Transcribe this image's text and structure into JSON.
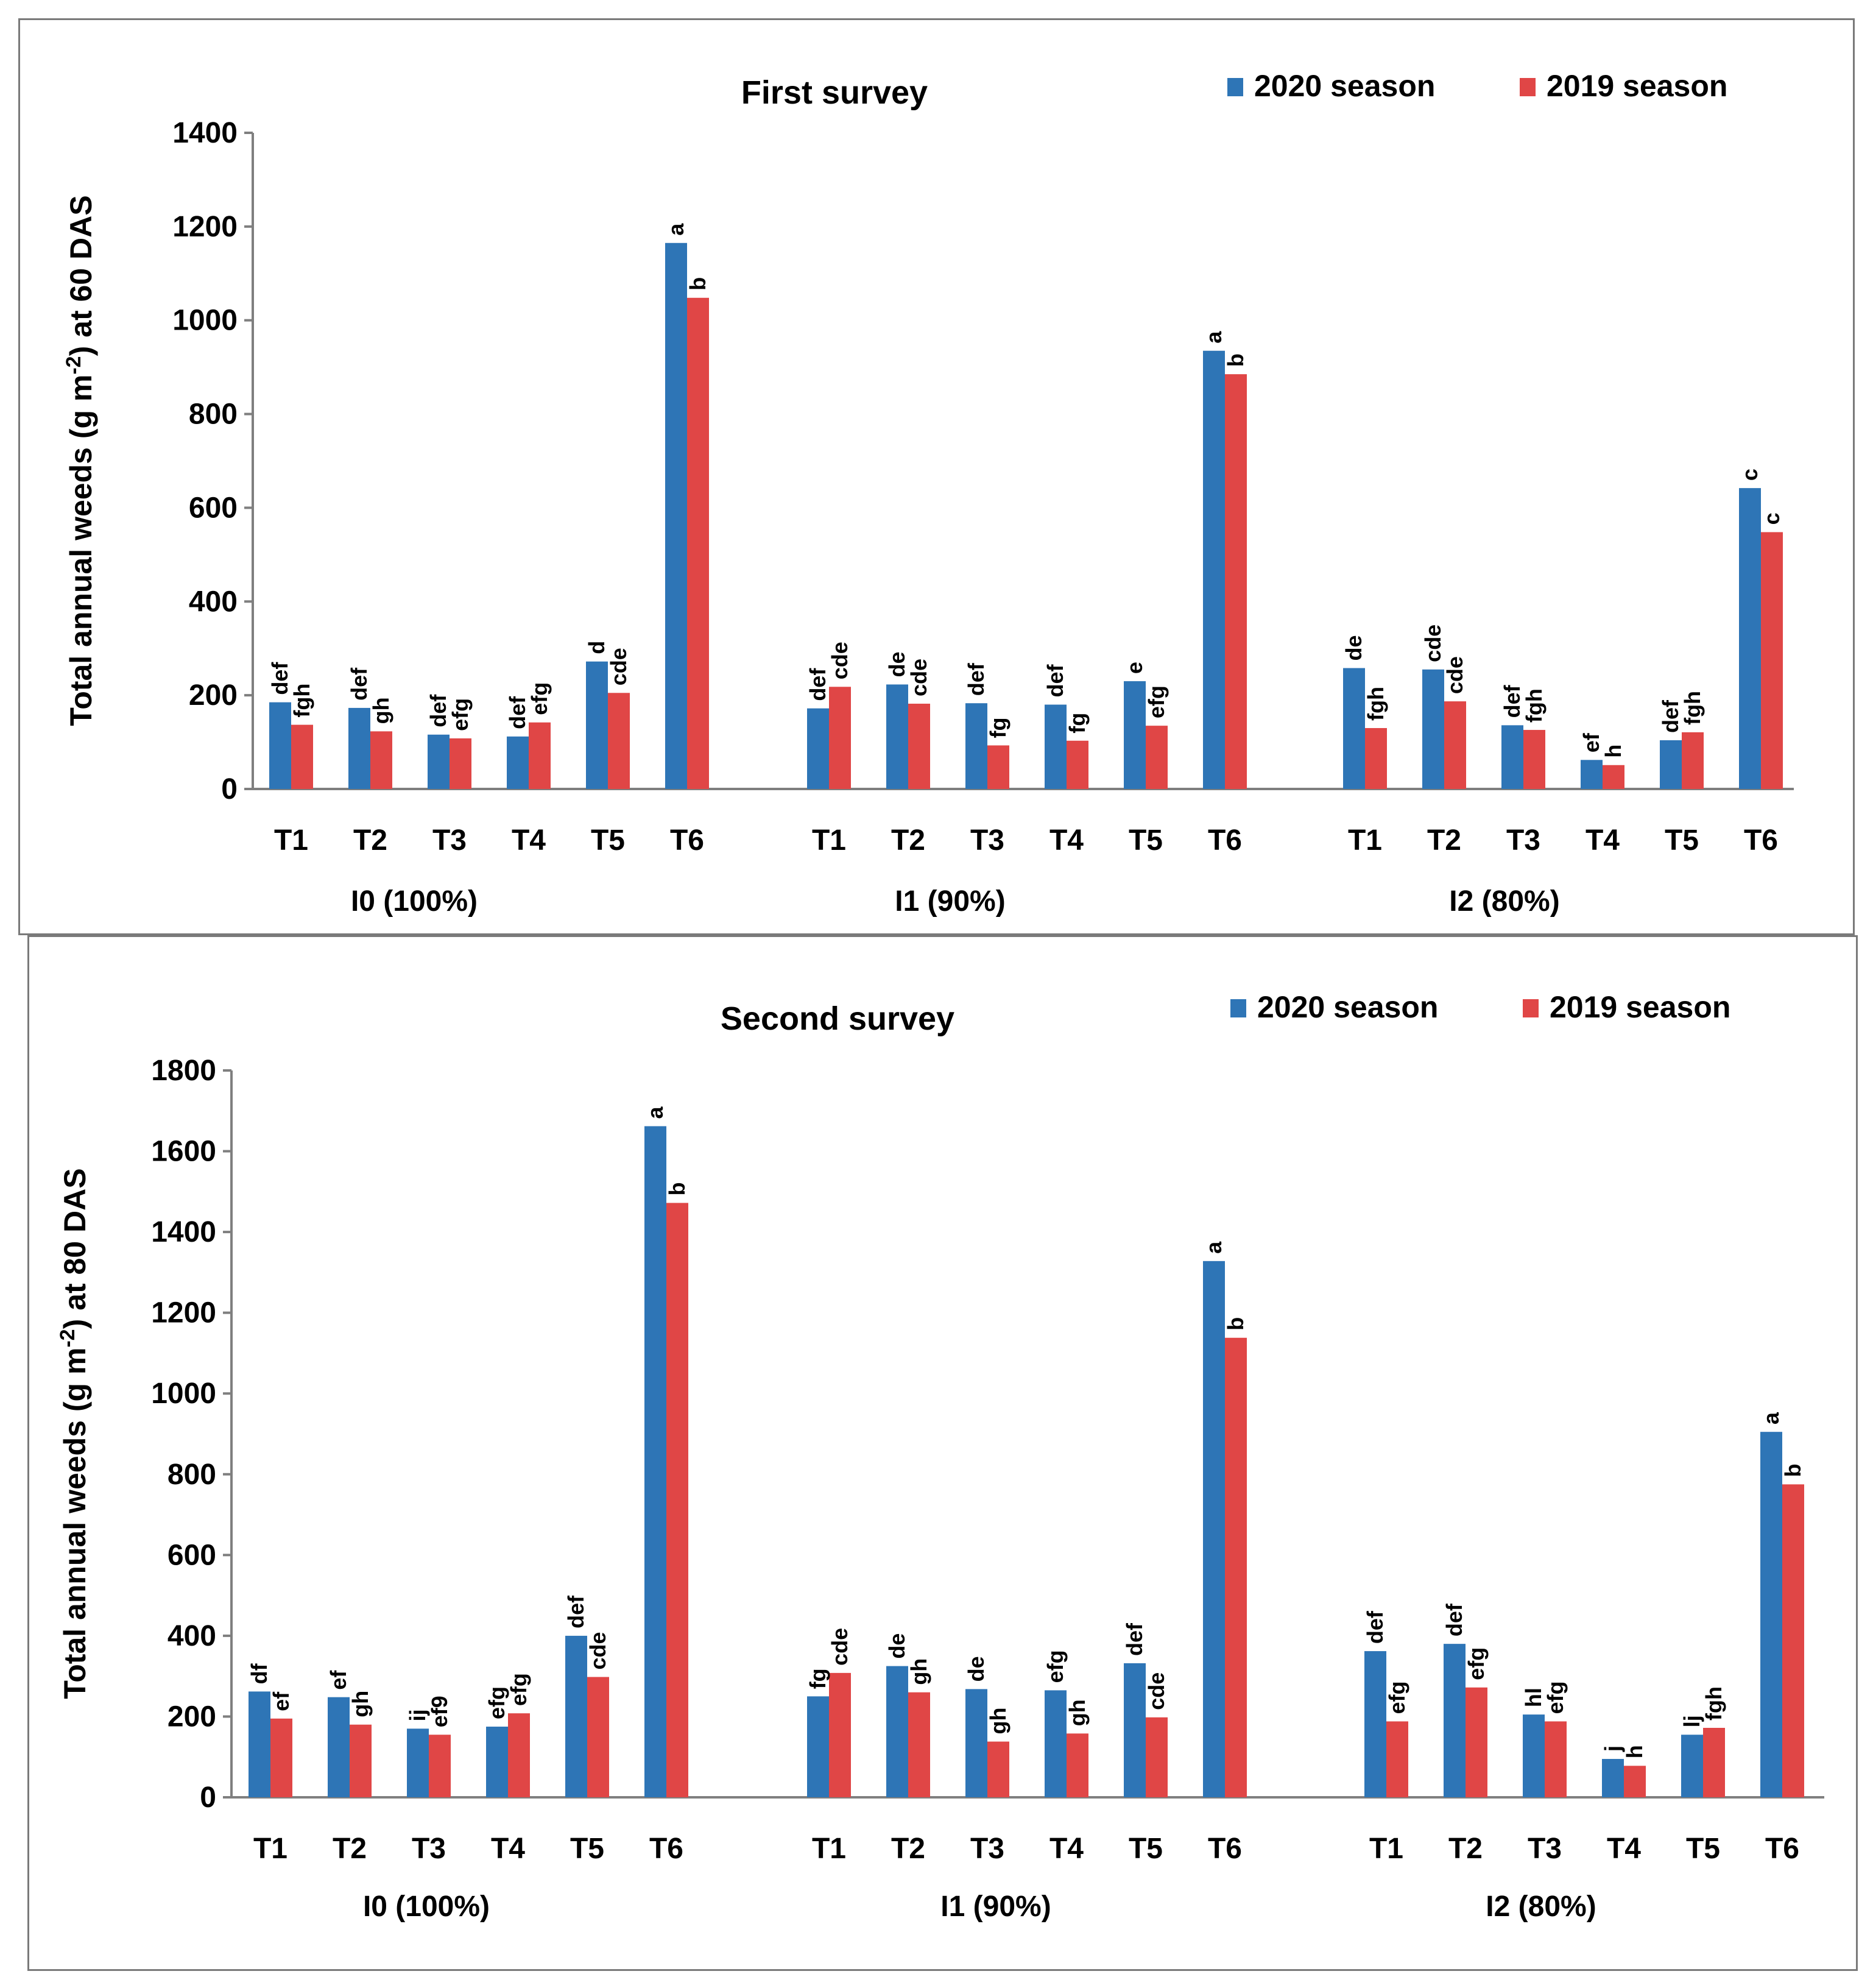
{
  "colors": {
    "s2020": "#2e75b6",
    "s2019": "#e04646",
    "axis": "#7f7f7f"
  },
  "chart_data": [
    {
      "type": "bar",
      "title": "First survey",
      "ylabel": "Total annual weeds  (g m-2) at 60 DAS",
      "ylabel_parts": [
        "Total annual weeds  (g m",
        "-2",
        ") at 60 DAS"
      ],
      "ylim": [
        0,
        1400
      ],
      "yticks": [
        "0",
        "200",
        "400",
        "600",
        "800",
        "1000",
        "1200",
        "1400"
      ],
      "legend": [
        "2020 season",
        "2019 season"
      ],
      "groups": [
        "I0 (100%)",
        "I1 (90%)",
        "I2 (80%)"
      ],
      "categories": [
        "T1",
        "T2",
        "T3",
        "T4",
        "T5",
        "T6"
      ],
      "series": [
        {
          "name": "2020 season",
          "values": [
            [
              185,
              173,
              116,
              112,
              272,
              1165
            ],
            [
              172,
              223,
              183,
              180,
              230,
              935
            ],
            [
              258,
              255,
              136,
              62,
              104,
              642
            ]
          ]
        },
        {
          "name": "2019 season",
          "values": [
            [
              137,
              123,
              108,
              142,
              205,
              1048
            ],
            [
              218,
              182,
              93,
              103,
              135,
              885
            ],
            [
              130,
              187,
              126,
              51,
              121,
              548
            ]
          ]
        }
      ],
      "letters": [
        [
          [
            "def",
            "def",
            "def",
            "def",
            "d",
            "a"
          ],
          [
            "def",
            "de",
            "def",
            "def",
            "e",
            "a"
          ],
          [
            "de",
            "cde",
            "def",
            "ef",
            "def",
            "c"
          ]
        ],
        [
          [
            "fgh",
            "gh",
            "efg",
            "efg",
            "cde",
            "b"
          ],
          [
            "cde",
            "cde",
            "fg",
            "fg",
            "efg",
            "b"
          ],
          [
            "fgh",
            "cde",
            "fgh",
            "h",
            "fgh",
            "c"
          ]
        ]
      ]
    },
    {
      "type": "bar",
      "title": "Second survey",
      "ylabel": "Total annual weeds  (g m-2) at 80 DAS",
      "ylabel_parts": [
        "Total annual weeds  (g m",
        "-2",
        ") at 80 DAS"
      ],
      "ylim": [
        0,
        1800
      ],
      "yticks": [
        "0",
        "200",
        "400",
        "600",
        "800",
        "1000",
        "1200",
        "1400",
        "1600",
        "1800"
      ],
      "legend": [
        "2020 season",
        "2019 season"
      ],
      "groups": [
        "I0  (100%)",
        "I1  (90%)",
        "I2 (80%)"
      ],
      "categories": [
        "T1",
        "T2",
        "T3",
        "T4",
        "T5",
        "T6"
      ],
      "series": [
        {
          "name": "2020 season",
          "values": [
            [
              262,
              248,
              170,
              175,
              400,
              1662
            ],
            [
              250,
              325,
              268,
              265,
              332,
              1328
            ],
            [
              362,
              380,
              205,
              95,
              155,
              905
            ]
          ]
        },
        {
          "name": "2019 season",
          "values": [
            [
              195,
              180,
              155,
              208,
              298,
              1472
            ],
            [
              308,
              260,
              138,
              158,
              198,
              1138
            ],
            [
              188,
              272,
              188,
              78,
              172,
              775
            ]
          ]
        }
      ],
      "letters": [
        [
          [
            "df",
            "ef",
            "ij",
            "efg",
            "def",
            "a"
          ],
          [
            "fg",
            "de",
            "de",
            "efg",
            "def",
            "a"
          ],
          [
            "def",
            "def",
            "hl",
            "j",
            "lj",
            "a"
          ]
        ],
        [
          [
            "ef",
            "gh",
            "ef9",
            "efg",
            "cde",
            "b"
          ],
          [
            "cde",
            "gh",
            "gh",
            "gh",
            "cde",
            "b"
          ],
          [
            "efg",
            "efg",
            "efg",
            "h",
            "fgh",
            "b"
          ]
        ]
      ]
    }
  ]
}
